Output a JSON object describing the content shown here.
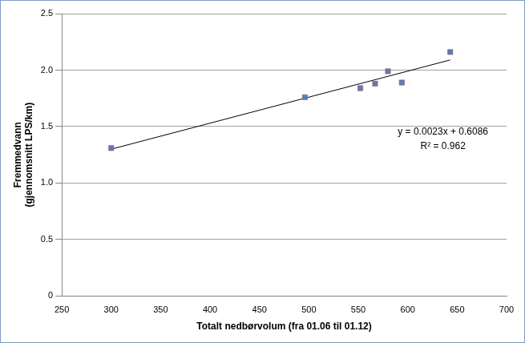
{
  "chart_data": {
    "type": "scatter",
    "x_label": "Totalt nedbørvolum (fra 01.06 til 01.12)",
    "y_label": [
      "Fremmedvann",
      "(gjennomsnitt LPS/km)"
    ],
    "x": [
      300,
      496,
      552,
      567,
      580,
      594,
      643
    ],
    "values": [
      1.31,
      1.76,
      1.84,
      1.88,
      1.99,
      1.89,
      2.16
    ],
    "color": "#4f81bd",
    "marker": "square",
    "trendline": {
      "x": [
        300,
        643
      ],
      "values": [
        1.3,
        2.09
      ],
      "color": "#000000"
    },
    "annotations": [
      "y = 0.0023x + 0.6086",
      "R² = 0.962"
    ],
    "xlim": [
      250,
      700
    ],
    "xticks": [
      250,
      300,
      350,
      400,
      450,
      500,
      550,
      600,
      650,
      700
    ],
    "ylim": [
      0,
      2.5
    ],
    "yticks": [
      0,
      0.5,
      1,
      1.5,
      2,
      2.5
    ],
    "grid": "y"
  }
}
